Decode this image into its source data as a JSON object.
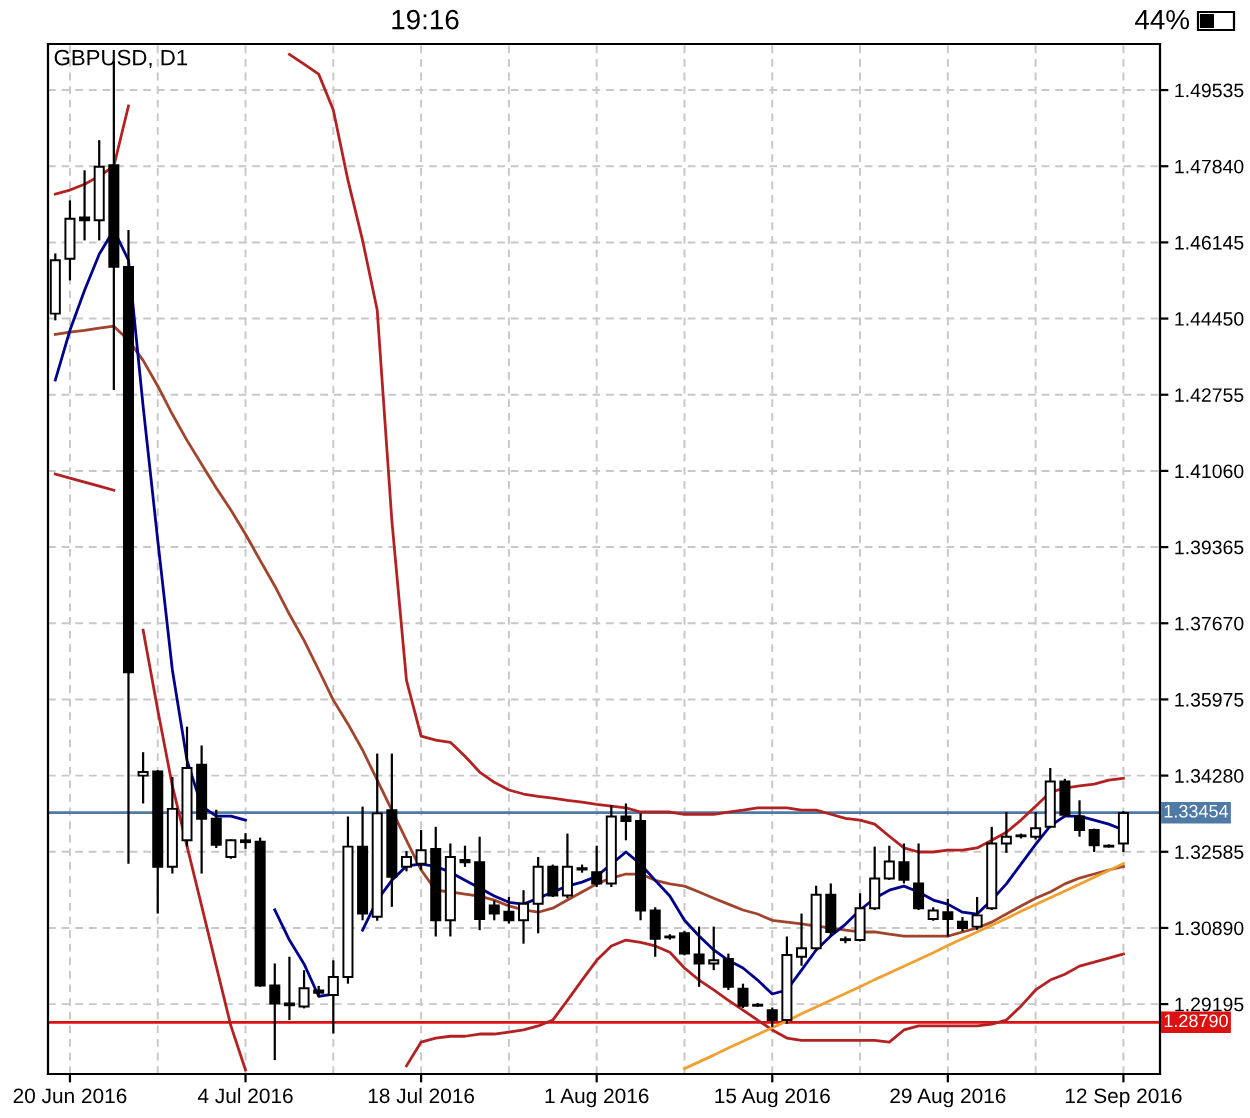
{
  "chart_data": {
    "type": "candlestick",
    "title": "GBPUSD, D1",
    "annotations": [
      "19:16",
      "44%"
    ],
    "categories": [
      null,
      "20 Jun 2016",
      null,
      null,
      null,
      null,
      null,
      null,
      null,
      null,
      null,
      null,
      null,
      "4 Jul 2016",
      null,
      null,
      null,
      null,
      null,
      null,
      null,
      null,
      null,
      null,
      null,
      "18 Jul 2016",
      null,
      null,
      null,
      null,
      null,
      null,
      null,
      null,
      null,
      null,
      null,
      "1 Aug 2016",
      null,
      null,
      null,
      null,
      null,
      null,
      null,
      null,
      null,
      null,
      null,
      "15 Aug 2016",
      null,
      null,
      null,
      null,
      null,
      null,
      null,
      null,
      null,
      null,
      null,
      "29 Aug 2016",
      null,
      null,
      null,
      null,
      null,
      null,
      null,
      null,
      null,
      null,
      null,
      "12 Sep 2016"
    ],
    "ohlc": [
      [
        1.4456,
        1.459,
        1.4441,
        1.4575
      ],
      [
        1.4578,
        1.4708,
        1.453,
        1.4667
      ],
      [
        1.467,
        1.4775,
        1.4619,
        1.4664
      ],
      [
        1.4664,
        1.4842,
        1.4619,
        1.4783
      ],
      [
        1.4786,
        1.5018,
        1.4286,
        1.456
      ],
      [
        1.456,
        1.4642,
        1.3232,
        1.3658
      ],
      [
        1.3428,
        1.348,
        1.3366,
        1.3436
      ],
      [
        1.3437,
        1.344,
        1.3121,
        1.3225
      ],
      [
        1.3225,
        1.3425,
        1.321,
        1.3354
      ],
      [
        1.3284,
        1.3537,
        1.327,
        1.3445
      ],
      [
        1.3452,
        1.3495,
        1.321,
        1.3332
      ],
      [
        1.3332,
        1.3352,
        1.3267,
        1.3274
      ],
      [
        1.3247,
        1.3286,
        1.3243,
        1.3284
      ],
      [
        1.3284,
        1.33,
        1.3265,
        1.328
      ],
      [
        1.3281,
        1.329,
        1.2958,
        1.2961
      ],
      [
        1.2961,
        1.301,
        1.2795,
        1.2921
      ],
      [
        1.2921,
        1.3025,
        1.2884,
        1.2917
      ],
      [
        1.2914,
        1.2995,
        1.291,
        1.2955
      ],
      [
        1.295,
        1.296,
        1.2935,
        1.2945
      ],
      [
        1.294,
        1.3017,
        1.2854,
        1.298
      ],
      [
        1.298,
        1.3337,
        1.2965,
        1.327
      ],
      [
        1.327,
        1.3359,
        1.3106,
        1.3121
      ],
      [
        1.3114,
        1.3477,
        1.3105,
        1.3344
      ],
      [
        1.3351,
        1.3477,
        1.3136,
        1.3203
      ],
      [
        1.3225,
        1.326,
        1.3215,
        1.3247
      ],
      [
        1.3232,
        1.3307,
        1.3218,
        1.3262
      ],
      [
        1.3265,
        1.3314,
        1.307,
        1.3106
      ],
      [
        1.3106,
        1.3277,
        1.307,
        1.3247
      ],
      [
        1.324,
        1.3272,
        1.3225,
        1.3235
      ],
      [
        1.3235,
        1.3292,
        1.3084,
        1.3109
      ],
      [
        1.3139,
        1.315,
        1.3106,
        1.3121
      ],
      [
        1.3125,
        1.3158,
        1.3099,
        1.3106
      ],
      [
        1.3106,
        1.3173,
        1.3054,
        1.3143
      ],
      [
        1.3143,
        1.3247,
        1.3077,
        1.3225
      ],
      [
        1.3225,
        1.323,
        1.3158,
        1.3161
      ],
      [
        1.3161,
        1.3299,
        1.3155,
        1.3225
      ],
      [
        1.3222,
        1.323,
        1.3212,
        1.3219
      ],
      [
        1.3213,
        1.3272,
        1.318,
        1.3188
      ],
      [
        1.3188,
        1.3362,
        1.318,
        1.3337
      ],
      [
        1.3337,
        1.3366,
        1.3284,
        1.3327
      ],
      [
        1.3327,
        1.3344,
        1.3106,
        1.3128
      ],
      [
        1.3128,
        1.3135,
        1.3025,
        1.3065
      ],
      [
        1.307,
        1.3075,
        1.3063,
        1.3068
      ],
      [
        1.3077,
        1.3082,
        1.3028,
        1.3032
      ],
      [
        1.303,
        1.3092,
        1.2958,
        1.301
      ],
      [
        1.301,
        1.3092,
        1.2995,
        1.3017
      ],
      [
        1.302,
        1.3032,
        1.2951,
        1.2958
      ],
      [
        1.2954,
        1.2965,
        1.2911,
        1.2916
      ],
      [
        1.2918,
        1.2922,
        1.2913,
        1.2916
      ],
      [
        1.2906,
        1.2912,
        1.2869,
        1.2884
      ],
      [
        1.2884,
        1.307,
        1.2876,
        1.3029
      ],
      [
        1.3025,
        1.3121,
        1.3005,
        1.3044
      ],
      [
        1.3044,
        1.3183,
        1.304,
        1.3163
      ],
      [
        1.3163,
        1.3188,
        1.307,
        1.308
      ],
      [
        1.3064,
        1.307,
        1.3055,
        1.3062
      ],
      [
        1.3062,
        1.3166,
        1.3059,
        1.3133
      ],
      [
        1.3133,
        1.327,
        1.3129,
        1.3199
      ],
      [
        1.3199,
        1.3272,
        1.3196,
        1.3237
      ],
      [
        1.3235,
        1.3277,
        1.3188,
        1.3196
      ],
      [
        1.3188,
        1.3277,
        1.3129,
        1.3133
      ],
      [
        1.3109,
        1.3135,
        1.3105,
        1.3128
      ],
      [
        1.3124,
        1.3154,
        1.307,
        1.3109
      ],
      [
        1.3103,
        1.3113,
        1.3082,
        1.3089
      ],
      [
        1.3092,
        1.3158,
        1.3085,
        1.3117
      ],
      [
        1.3133,
        1.3314,
        1.3129,
        1.3277
      ],
      [
        1.3277,
        1.3347,
        1.3256,
        1.3292
      ],
      [
        1.3293,
        1.3299,
        1.3288,
        1.3295
      ],
      [
        1.3292,
        1.3347,
        1.3286,
        1.3311
      ],
      [
        1.3314,
        1.3445,
        1.3311,
        1.3415
      ],
      [
        1.3415,
        1.3421,
        1.3337,
        1.3341
      ],
      [
        1.3337,
        1.3373,
        1.3292,
        1.3307
      ],
      [
        1.3307,
        1.331,
        1.3258,
        1.3273
      ],
      [
        1.3272,
        1.3275,
        1.3268,
        1.327
      ],
      [
        1.3277,
        1.3349,
        1.3258,
        1.3345
      ]
    ],
    "series": [
      {
        "type": "line",
        "color": "#b22222",
        "values": [
          1.4722,
          1.4731,
          1.4744,
          1.4762,
          1.4784,
          1.4918,
          null,
          null,
          null,
          null,
          null,
          null,
          null,
          null,
          null,
          null,
          1.5033,
          1.5011,
          1.4989,
          1.4909,
          1.4753,
          1.4619,
          1.4464,
          1.3996,
          1.364,
          1.3516,
          1.3507,
          1.3502,
          1.3471,
          1.3436,
          1.3413,
          1.3396,
          1.3387,
          1.3382,
          1.3378,
          1.3373,
          1.3369,
          1.3364,
          1.336,
          1.3356,
          1.3347,
          1.3347,
          1.3347,
          1.3342,
          1.3342,
          1.3342,
          1.3347,
          1.3351,
          1.3356,
          1.3356,
          1.3356,
          1.3351,
          1.3351,
          1.3342,
          1.3333,
          1.3329,
          1.332,
          1.3293,
          1.3267,
          1.3258,
          1.3258,
          1.3262,
          1.3262,
          1.3267,
          1.3284,
          1.3302,
          1.3329,
          1.336,
          1.3391,
          1.34,
          1.3405,
          1.3409,
          1.3418,
          1.3422
        ]
      },
      {
        "type": "line",
        "color": "#a0442c",
        "values": [
          1.441,
          1.4415,
          1.4419,
          1.4424,
          1.4428,
          1.4397,
          1.4352,
          1.4295,
          1.4232,
          1.4174,
          1.4121,
          1.4068,
          1.4019,
          1.3965,
          1.3907,
          1.385,
          1.3787,
          1.3729,
          1.3663,
          1.3596,
          1.3543,
          1.3485,
          1.3418,
          1.3351,
          1.3284,
          1.3218,
          1.3173,
          1.3169,
          1.3164,
          1.316,
          1.3151,
          1.3138,
          1.3129,
          1.3124,
          1.3133,
          1.3151,
          1.3169,
          1.3187,
          1.32,
          1.3209,
          1.3209,
          1.3195,
          1.3187,
          1.3182,
          1.3169,
          1.3155,
          1.3142,
          1.3129,
          1.312,
          1.3106,
          1.3102,
          1.3098,
          1.3093,
          1.3089,
          1.3084,
          1.308,
          1.308,
          1.3075,
          1.3071,
          1.3071,
          1.3071,
          1.3071,
          1.308,
          1.3089,
          1.3102,
          1.312,
          1.3138,
          1.3155,
          1.3169,
          1.3187,
          1.32,
          1.3209,
          1.3218,
          1.3226
        ]
      },
      {
        "type": "line",
        "color": "#b22222",
        "values": [
          1.4099,
          1.409,
          1.4081,
          1.4072,
          1.4063,
          null,
          1.3752,
          1.3574,
          1.3405,
          1.3271,
          1.3138,
          1.3004,
          1.2871,
          1.2773,
          null,
          null,
          null,
          null,
          null,
          null,
          null,
          null,
          null,
          null,
          1.2782,
          1.2835,
          1.2844,
          1.2848,
          1.2848,
          1.2853,
          1.2853,
          1.2857,
          1.2862,
          1.2871,
          1.2884,
          1.2928,
          1.2973,
          1.3017,
          1.3049,
          1.3062,
          1.3057,
          1.3049,
          1.3035,
          1.3,
          1.2973,
          1.2951,
          1.2928,
          1.2906,
          1.2884,
          1.2862,
          1.2844,
          1.2839,
          1.2839,
          1.2839,
          1.2839,
          1.2839,
          1.2839,
          1.2835,
          1.2862,
          1.2871,
          1.2871,
          1.2871,
          1.2871,
          1.2871,
          1.2875,
          1.2884,
          1.2915,
          1.2951,
          1.2973,
          1.2986,
          1.3004,
          1.3013,
          1.3022,
          1.3031
        ]
      },
      {
        "type": "line",
        "color": "#00008b",
        "values": [
          1.4308,
          1.4419,
          1.4508,
          1.4588,
          1.4642,
          1.4575,
          1.425,
          1.3952,
          1.3663,
          1.3462,
          1.336,
          1.3338,
          1.3338,
          1.3329,
          null,
          1.3129,
          1.3062,
          1.3009,
          1.2937,
          1.2942,
          null,
          1.3084,
          1.3151,
          1.3195,
          1.3227,
          1.3231,
          1.3226,
          1.3213,
          1.3195,
          1.3178,
          1.316,
          1.3146,
          1.3142,
          1.3155,
          1.3169,
          1.3182,
          1.3191,
          1.3204,
          1.3231,
          1.3258,
          1.3231,
          1.3195,
          1.316,
          1.3106,
          1.3071,
          1.304,
          1.3017,
          1.3,
          1.2973,
          1.2942,
          1.2951,
          1.2995,
          1.304,
          1.3071,
          1.3097,
          1.3129,
          1.3155,
          1.3173,
          1.3182,
          1.3169,
          1.3151,
          1.3142,
          1.3124,
          1.312,
          1.3151,
          1.3187,
          1.3231,
          1.3275,
          1.3316,
          1.3338,
          1.3338,
          1.3329,
          1.332,
          1.3307
        ]
      },
      {
        "type": "line",
        "color": "#f0a030",
        "values": [
          null,
          null,
          null,
          null,
          null,
          null,
          null,
          null,
          null,
          null,
          null,
          null,
          null,
          null,
          null,
          null,
          null,
          null,
          null,
          null,
          null,
          null,
          null,
          null,
          null,
          null,
          null,
          null,
          null,
          null,
          null,
          null,
          null,
          null,
          null,
          null,
          null,
          null,
          null,
          null,
          null,
          null,
          null,
          1.2776,
          1.2791,
          1.2806,
          1.2822,
          1.2837,
          1.2852,
          1.2867,
          1.2882,
          1.2898,
          1.2913,
          1.2928,
          1.2943,
          1.2958,
          1.2974,
          1.2989,
          1.3004,
          1.3019,
          1.3034,
          1.305,
          1.3065,
          1.308,
          1.3095,
          1.311,
          1.3126,
          1.3141,
          1.3156,
          1.3171,
          1.3186,
          1.3202,
          1.3217,
          1.3232
        ]
      }
    ],
    "ylim": [
      1.2764,
      1.5056
    ],
    "yticks": [
      {
        "value": 1.29195,
        "label": "1.29195"
      },
      {
        "value": 1.3089,
        "label": "1.30890"
      },
      {
        "value": 1.32585,
        "label": "1.32585"
      },
      {
        "value": 1.3428,
        "label": "1.34280"
      },
      {
        "value": 1.35975,
        "label": "1.35975"
      },
      {
        "value": 1.3767,
        "label": "1.37670"
      },
      {
        "value": 1.39365,
        "label": "1.39365"
      },
      {
        "value": 1.4106,
        "label": "1.41060"
      },
      {
        "value": 1.42755,
        "label": "1.42755"
      },
      {
        "value": 1.4445,
        "label": "1.44450"
      },
      {
        "value": 1.46145,
        "label": "1.46145"
      },
      {
        "value": 1.4784,
        "label": "1.47840"
      },
      {
        "value": 1.49535,
        "label": "1.49535"
      }
    ],
    "ref_lines": [
      {
        "axis": "y",
        "value": 1.33454,
        "label": "1.33454",
        "color": "#4f7aa6"
      },
      {
        "axis": "y",
        "value": 1.2879,
        "label": "1.28790",
        "color": "#dd1111"
      }
    ],
    "grid": true,
    "legend": false
  }
}
